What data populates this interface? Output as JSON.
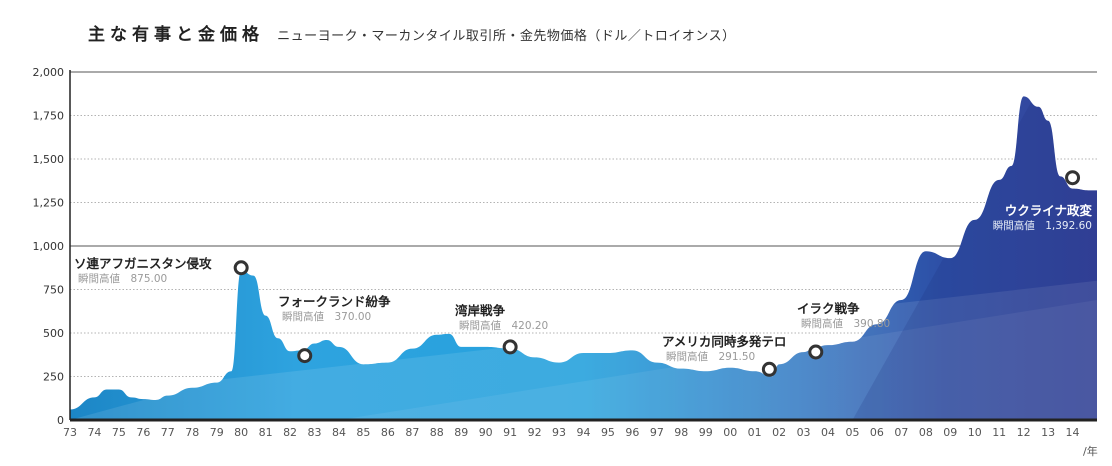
{
  "title": "主な有事と金価格",
  "subtitle": "ニューヨーク・マーカンタイル取引所・金先物価格（ドル／トロイオンス）",
  "colors": {
    "gold_line_light": "#2aa6df",
    "gold_line_dark": "#2b3f95",
    "axis": "#222222"
  },
  "chart_data": {
    "type": "area",
    "title": "主な有事と金価格",
    "subtitle": "ニューヨーク・マーカンタイル取引所・金先物価格（ドル／トロイオンス）",
    "xlabel": "/年",
    "ylabel": "",
    "ylim": [
      0,
      2000
    ],
    "yticks": [
      0,
      250,
      500,
      750,
      1000,
      1250,
      1500,
      1750,
      2000
    ],
    "ytick_labels": [
      "0",
      "250",
      "500",
      "750",
      "1,000",
      "1,250",
      "1,500",
      "1,750",
      "2,000"
    ],
    "xlim": [
      1973,
      2015
    ],
    "x_ticks": [
      1973,
      1974,
      1975,
      1976,
      1977,
      1978,
      1979,
      1980,
      1981,
      1982,
      1983,
      1984,
      1985,
      1986,
      1987,
      1988,
      1989,
      1990,
      1991,
      1992,
      1993,
      1994,
      1995,
      1996,
      1997,
      1998,
      1999,
      2000,
      2001,
      2002,
      2003,
      2004,
      2005,
      2006,
      2007,
      2008,
      2009,
      2010,
      2011,
      2012,
      2013,
      2014
    ],
    "x_tick_labels": [
      "73",
      "74",
      "75",
      "76",
      "77",
      "78",
      "79",
      "80",
      "81",
      "82",
      "83",
      "84",
      "85",
      "86",
      "87",
      "88",
      "89",
      "90",
      "91",
      "92",
      "93",
      "94",
      "95",
      "96",
      "97",
      "98",
      "99",
      "00",
      "01",
      "02",
      "03",
      "04",
      "05",
      "06",
      "07",
      "08",
      "09",
      "10",
      "11",
      "12",
      "13",
      "14"
    ],
    "grid": true,
    "series": [
      {
        "x": [
          1973,
          1974,
          1974.5,
          1975,
          1975.5,
          1976,
          1976.5,
          1977,
          1978,
          1979,
          1979.6,
          1980,
          1980.5,
          1981,
          1981.5,
          1982,
          1982.5,
          1983,
          1983.5,
          1984,
          1985,
          1986,
          1987,
          1988,
          1988.5,
          1989,
          1990,
          1991,
          1992,
          1993,
          1994,
          1995,
          1996,
          1997,
          1998,
          1999,
          2000,
          2001,
          2001.7,
          2002,
          2003,
          2003.5,
          2004,
          2005,
          2006,
          2007,
          2008,
          2009,
          2010,
          2011,
          2011.5,
          2012,
          2012.6,
          2013,
          2013.5,
          2014,
          2014.7
        ],
        "values": [
          60,
          130,
          175,
          175,
          130,
          120,
          115,
          140,
          185,
          215,
          280,
          860,
          830,
          600,
          470,
          395,
          400,
          440,
          460,
          420,
          320,
          330,
          410,
          490,
          495,
          420,
          420,
          410,
          360,
          330,
          385,
          385,
          400,
          330,
          295,
          280,
          300,
          280,
          250,
          320,
          390,
          420,
          430,
          450,
          550,
          690,
          970,
          930,
          1150,
          1380,
          1460,
          1860,
          1800,
          1720,
          1400,
          1330,
          1320
        ]
      }
    ],
    "annotations": [
      {
        "label": "ソ連アフガニスタン侵攻",
        "sub": "瞬間高値　875.00",
        "x": 1980,
        "value": 875.0
      },
      {
        "label": "フォークランド紛争",
        "sub": "瞬間高値　370.00",
        "x": 1982.6,
        "value": 370.0
      },
      {
        "label": "湾岸戦争",
        "sub": "瞬間高値　420.20",
        "x": 1991,
        "value": 420.2
      },
      {
        "label": "アメリカ同時多発テロ",
        "sub": "瞬間高値　291.50",
        "x": 2001.6,
        "value": 291.5
      },
      {
        "label": "イラク戦争",
        "sub": "瞬間高値　390.80",
        "x": 2003.5,
        "value": 390.8
      },
      {
        "label": "ウクライナ政変",
        "sub": "瞬間高値　1,392.60",
        "x": 2014,
        "value": 1392.6
      }
    ]
  }
}
